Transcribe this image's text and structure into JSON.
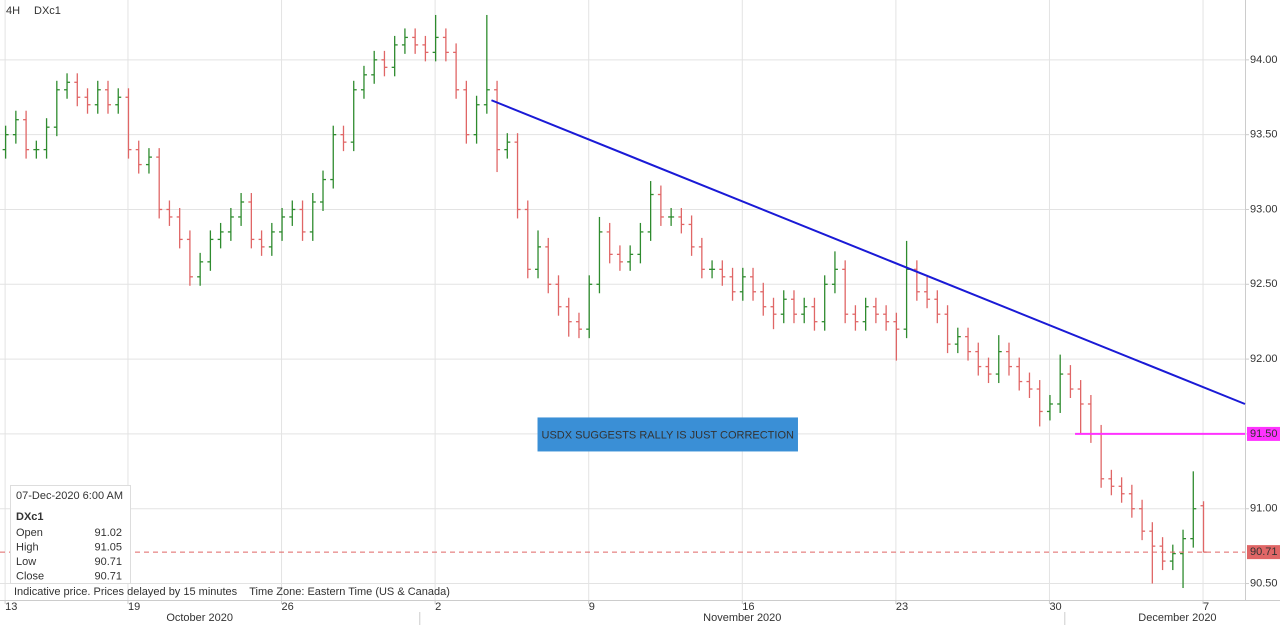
{
  "chart_data": {
    "type": "ohlc",
    "timeframe": "4H",
    "symbol": "DXc1",
    "up_color": "#2e8b2e",
    "down_color": "#e06666",
    "grid": true,
    "ylim": [
      90.39,
      94.4
    ],
    "yticks": [
      {
        "value": 90.5,
        "label": "90.50"
      },
      {
        "value": 91,
        "label": "91.00"
      },
      {
        "value": 91.5,
        "label": "91.50"
      },
      {
        "value": 92,
        "label": "92.00"
      },
      {
        "value": 92.5,
        "label": "92.50"
      },
      {
        "value": 93,
        "label": "93.00"
      },
      {
        "value": 93.5,
        "label": "93.50"
      },
      {
        "value": 94,
        "label": "94.00"
      }
    ],
    "xlim": [
      -0.5,
      121.1
    ],
    "xticks": [
      {
        "value": 0,
        "label": "13"
      },
      {
        "value": 12,
        "label": "19"
      },
      {
        "value": 27,
        "label": "26"
      },
      {
        "value": 42,
        "label": "2"
      },
      {
        "value": 57,
        "label": "9"
      },
      {
        "value": 72,
        "label": "16"
      },
      {
        "value": 87,
        "label": "23"
      },
      {
        "value": 102,
        "label": "30"
      },
      {
        "value": 117,
        "label": "7"
      }
    ],
    "month_labels": [
      {
        "value": 19,
        "label": "October 2020"
      },
      {
        "value": 72,
        "label": "November 2020"
      },
      {
        "value": 114.5,
        "label": "December 2020"
      }
    ],
    "month_separators": [
      40.5,
      103.5
    ],
    "ohlc": [
      [
        93.4,
        93.56,
        93.34,
        93.5
      ],
      [
        93.5,
        93.66,
        93.44,
        93.6
      ],
      [
        93.6,
        93.66,
        93.34,
        93.4
      ],
      [
        93.4,
        93.46,
        93.34,
        93.4
      ],
      [
        93.4,
        93.61,
        93.34,
        93.55
      ],
      [
        93.55,
        93.86,
        93.49,
        93.8
      ],
      [
        93.8,
        93.91,
        93.74,
        93.85
      ],
      [
        93.85,
        93.91,
        93.69,
        93.75
      ],
      [
        93.75,
        93.81,
        93.64,
        93.7
      ],
      [
        93.7,
        93.86,
        93.64,
        93.8
      ],
      [
        93.8,
        93.86,
        93.64,
        93.7
      ],
      [
        93.7,
        93.81,
        93.64,
        93.75
      ],
      [
        93.75,
        93.81,
        93.34,
        93.4
      ],
      [
        93.4,
        93.46,
        93.24,
        93.3
      ],
      [
        93.3,
        93.41,
        93.24,
        93.35
      ],
      [
        93.35,
        93.41,
        92.94,
        93.0
      ],
      [
        93.0,
        93.06,
        92.89,
        92.95
      ],
      [
        92.95,
        93.01,
        92.74,
        92.8
      ],
      [
        92.8,
        92.86,
        92.49,
        92.55
      ],
      [
        92.55,
        92.71,
        92.49,
        92.65
      ],
      [
        92.65,
        92.86,
        92.59,
        92.8
      ],
      [
        92.8,
        92.91,
        92.74,
        92.85
      ],
      [
        92.85,
        93.01,
        92.79,
        92.95
      ],
      [
        92.95,
        93.11,
        92.89,
        93.05
      ],
      [
        93.05,
        93.11,
        92.74,
        92.8
      ],
      [
        92.8,
        92.86,
        92.69,
        92.75
      ],
      [
        92.75,
        92.91,
        92.69,
        92.85
      ],
      [
        92.85,
        93.01,
        92.79,
        92.95
      ],
      [
        92.95,
        93.06,
        92.89,
        93.0
      ],
      [
        93.0,
        93.06,
        92.79,
        92.85
      ],
      [
        92.85,
        93.11,
        92.79,
        93.05
      ],
      [
        93.05,
        93.26,
        92.99,
        93.2
      ],
      [
        93.2,
        93.56,
        93.14,
        93.5
      ],
      [
        93.5,
        93.56,
        93.39,
        93.45
      ],
      [
        93.45,
        93.86,
        93.39,
        93.8
      ],
      [
        93.8,
        93.96,
        93.74,
        93.9
      ],
      [
        93.9,
        94.06,
        93.84,
        94.0
      ],
      [
        94.0,
        94.06,
        93.89,
        93.95
      ],
      [
        93.95,
        94.16,
        93.89,
        94.1
      ],
      [
        94.1,
        94.21,
        94.04,
        94.15
      ],
      [
        94.15,
        94.21,
        94.04,
        94.1
      ],
      [
        94.1,
        94.16,
        93.99,
        94.05
      ],
      [
        94.05,
        94.3,
        93.99,
        94.15
      ],
      [
        94.15,
        94.21,
        93.99,
        94.05
      ],
      [
        94.05,
        94.11,
        93.74,
        93.8
      ],
      [
        93.8,
        93.86,
        93.44,
        93.5
      ],
      [
        93.5,
        93.76,
        93.44,
        93.7
      ],
      [
        93.7,
        94.3,
        93.64,
        93.8
      ],
      [
        93.8,
        93.86,
        93.25,
        93.4
      ],
      [
        93.4,
        93.51,
        93.34,
        93.45
      ],
      [
        93.45,
        93.51,
        92.94,
        93.0
      ],
      [
        93.0,
        93.06,
        92.54,
        92.6
      ],
      [
        92.6,
        92.86,
        92.54,
        92.75
      ],
      [
        92.75,
        92.81,
        92.44,
        92.5
      ],
      [
        92.5,
        92.56,
        92.29,
        92.35
      ],
      [
        92.35,
        92.41,
        92.15,
        92.25
      ],
      [
        92.25,
        92.31,
        92.14,
        92.2
      ],
      [
        92.2,
        92.56,
        92.14,
        92.5
      ],
      [
        92.5,
        92.95,
        92.44,
        92.85
      ],
      [
        92.85,
        92.91,
        92.64,
        92.7
      ],
      [
        92.7,
        92.76,
        92.59,
        92.65
      ],
      [
        92.65,
        92.76,
        92.59,
        92.7
      ],
      [
        92.7,
        92.91,
        92.64,
        92.85
      ],
      [
        92.85,
        93.19,
        92.79,
        93.1
      ],
      [
        93.1,
        93.16,
        92.89,
        92.95
      ],
      [
        92.95,
        93.01,
        92.89,
        92.95
      ],
      [
        92.95,
        93.01,
        92.84,
        92.9
      ],
      [
        92.9,
        92.96,
        92.69,
        92.75
      ],
      [
        92.75,
        92.81,
        92.54,
        92.6
      ],
      [
        92.6,
        92.66,
        92.54,
        92.6
      ],
      [
        92.6,
        92.66,
        92.49,
        92.55
      ],
      [
        92.55,
        92.61,
        92.39,
        92.45
      ],
      [
        92.45,
        92.61,
        92.39,
        92.55
      ],
      [
        92.55,
        92.61,
        92.39,
        92.45
      ],
      [
        92.45,
        92.51,
        92.29,
        92.35
      ],
      [
        92.35,
        92.41,
        92.2,
        92.3
      ],
      [
        92.3,
        92.46,
        92.24,
        92.4
      ],
      [
        92.4,
        92.46,
        92.24,
        92.3
      ],
      [
        92.3,
        92.41,
        92.24,
        92.35
      ],
      [
        92.35,
        92.41,
        92.19,
        92.25
      ],
      [
        92.25,
        92.56,
        92.19,
        92.5
      ],
      [
        92.5,
        92.72,
        92.44,
        92.6
      ],
      [
        92.6,
        92.66,
        92.24,
        92.3
      ],
      [
        92.3,
        92.36,
        92.19,
        92.25
      ],
      [
        92.25,
        92.41,
        92.19,
        92.35
      ],
      [
        92.35,
        92.41,
        92.24,
        92.3
      ],
      [
        92.3,
        92.36,
        92.19,
        92.25
      ],
      [
        92.25,
        92.31,
        91.99,
        92.2
      ],
      [
        92.2,
        92.79,
        92.14,
        92.6
      ],
      [
        92.6,
        92.66,
        92.39,
        92.45
      ],
      [
        92.45,
        92.55,
        92.34,
        92.4
      ],
      [
        92.4,
        92.46,
        92.24,
        92.3
      ],
      [
        92.3,
        92.36,
        92.04,
        92.1
      ],
      [
        92.1,
        92.21,
        92.04,
        92.15
      ],
      [
        92.15,
        92.21,
        91.99,
        92.05
      ],
      [
        92.05,
        92.11,
        91.89,
        91.95
      ],
      [
        91.95,
        92.01,
        91.84,
        91.9
      ],
      [
        91.9,
        92.16,
        91.84,
        92.05
      ],
      [
        92.05,
        92.11,
        91.89,
        91.95
      ],
      [
        91.95,
        92.01,
        91.79,
        91.85
      ],
      [
        91.85,
        91.91,
        91.74,
        91.8
      ],
      [
        91.8,
        91.86,
        91.55,
        91.65
      ],
      [
        91.65,
        91.76,
        91.59,
        91.7
      ],
      [
        91.7,
        92.03,
        91.64,
        91.9
      ],
      [
        91.9,
        91.96,
        91.74,
        91.8
      ],
      [
        91.8,
        91.86,
        91.5,
        91.7
      ],
      [
        91.7,
        91.76,
        91.44,
        91.5
      ],
      [
        91.5,
        91.56,
        91.14,
        91.2
      ],
      [
        91.2,
        91.26,
        91.09,
        91.15
      ],
      [
        91.15,
        91.21,
        91.04,
        91.1
      ],
      [
        91.1,
        91.16,
        90.94,
        91.0
      ],
      [
        91.0,
        91.06,
        90.79,
        90.85
      ],
      [
        90.85,
        90.91,
        90.5,
        90.75
      ],
      [
        90.75,
        90.81,
        90.59,
        90.65
      ],
      [
        90.65,
        90.76,
        90.59,
        90.7
      ],
      [
        90.7,
        90.86,
        90.47,
        90.8
      ],
      [
        90.8,
        91.25,
        90.74,
        91.0
      ],
      [
        91.02,
        91.05,
        90.71,
        90.71
      ]
    ],
    "trendline": {
      "color": "#1a1ad6",
      "x": [
        47.5,
        121.1
      ],
      "y": [
        93.73,
        91.7
      ]
    },
    "level": {
      "value": 91.5,
      "label": "91.50",
      "color": "#ff33ff",
      "x_start": 104.5
    },
    "last_price": {
      "value": 90.71,
      "color": "#e06666"
    },
    "annotation": {
      "text": "USDX SUGGESTS RALLY IS JUST CORRECTION",
      "color": "#3a8fd6",
      "x": 52,
      "y": 91.61
    },
    "info_panel": {
      "date": "07-Dec-2020 6:00 AM",
      "symbol": "DXc1",
      "labels": [
        "Open",
        "High",
        "Low",
        "Close"
      ]
    },
    "footnote": "Indicative price. Prices delayed by 15 minutes    Time Zone: Eastern Time (US & Canada)"
  }
}
